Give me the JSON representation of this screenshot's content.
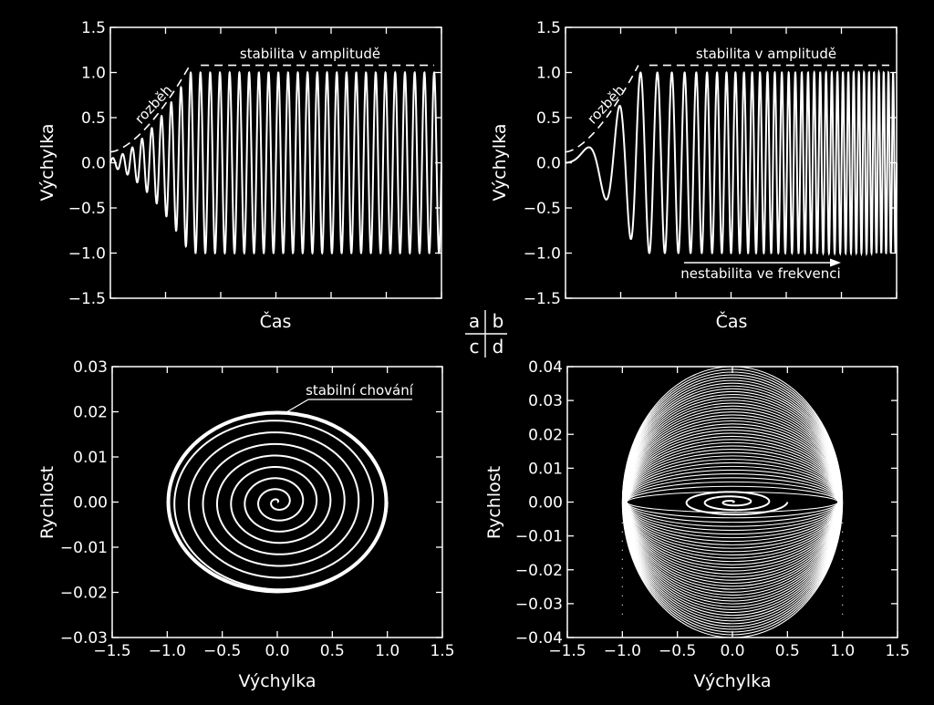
{
  "panel_labels": {
    "a": "a",
    "b": "b",
    "c": "c",
    "d": "d"
  },
  "chart_data": [
    {
      "id": "a",
      "type": "line",
      "xlabel": "Čas",
      "ylabel": "Výchylka",
      "ylim": [
        -1.5,
        1.5
      ],
      "yticks": [
        "−1.5",
        "−1.0",
        "−0.5",
        "0.0",
        "0.5",
        "1.0",
        "1.5"
      ],
      "xtick_labels_shown": false,
      "series": [
        {
          "kind": "oscillation",
          "frequency_behavior": "constant",
          "cycles": 34,
          "amplitude_start": 0.05,
          "amplitude_final": 1.0,
          "ramp_end_fraction": 0.24
        },
        {
          "kind": "envelope",
          "style": "dashed",
          "start_value": 0.12,
          "final_value": 1.08
        }
      ],
      "annotations": [
        {
          "text": "stabilita v amplitudě"
        },
        {
          "text": "rozběh"
        }
      ]
    },
    {
      "id": "b",
      "type": "line",
      "xlabel": "Čas",
      "ylabel": "Výchylka",
      "ylim": [
        -1.5,
        1.5
      ],
      "yticks": [
        "−1.5",
        "−1.0",
        "−0.5",
        "0.0",
        "0.5",
        "1.0",
        "1.5"
      ],
      "xtick_labels_shown": false,
      "series": [
        {
          "kind": "oscillation",
          "frequency_behavior": "increasing",
          "amplitude_start": 0.03,
          "amplitude_final": 1.0,
          "ramp_end_fraction": 0.22
        },
        {
          "kind": "envelope",
          "style": "dashed",
          "start_value": 0.12,
          "final_value": 1.08
        }
      ],
      "annotations": [
        {
          "text": "stabilita v amplitudě"
        },
        {
          "text": "rozběh"
        },
        {
          "text": "nestabilita ve frekvenci",
          "arrow": "right"
        }
      ]
    },
    {
      "id": "c",
      "type": "line",
      "xlabel": "Výchylka",
      "ylabel": "Rychlost",
      "xlim": [
        -1.5,
        1.5
      ],
      "ylim": [
        -0.03,
        0.03
      ],
      "xticks": [
        "−1.5",
        "−1.0",
        "−0.5",
        "0.0",
        "0.5",
        "1.0",
        "1.5"
      ],
      "yticks": [
        "−0.03",
        "−0.02",
        "−0.01",
        "0.00",
        "0.01",
        "0.02",
        "0.03"
      ],
      "series": [
        {
          "kind": "spiral",
          "x_amplitude_final": 1.0,
          "y_amplitude_final": 0.02,
          "turns": 8,
          "settles_to_limit_cycle": true
        }
      ],
      "annotations": [
        {
          "text": "stabilní chování"
        }
      ]
    },
    {
      "id": "d",
      "type": "line",
      "xlabel": "Výchylka",
      "ylabel": "Rychlost",
      "xlim": [
        -1.5,
        1.5
      ],
      "ylim": [
        -0.04,
        0.04
      ],
      "xticks": [
        "−1.5",
        "−1.0",
        "−0.5",
        "0.0",
        "0.5",
        "1.0",
        "1.5"
      ],
      "yticks": [
        "−0.04",
        "−0.03",
        "−0.02",
        "−0.01",
        "0.00",
        "0.01",
        "0.02",
        "0.03",
        "0.04"
      ],
      "series": [
        {
          "kind": "spiral",
          "x_amplitude_final": 1.0,
          "y_amplitude_start": 0.003,
          "y_amplitude_final": 0.04,
          "ellipses": 40
        }
      ],
      "annotations": []
    }
  ]
}
